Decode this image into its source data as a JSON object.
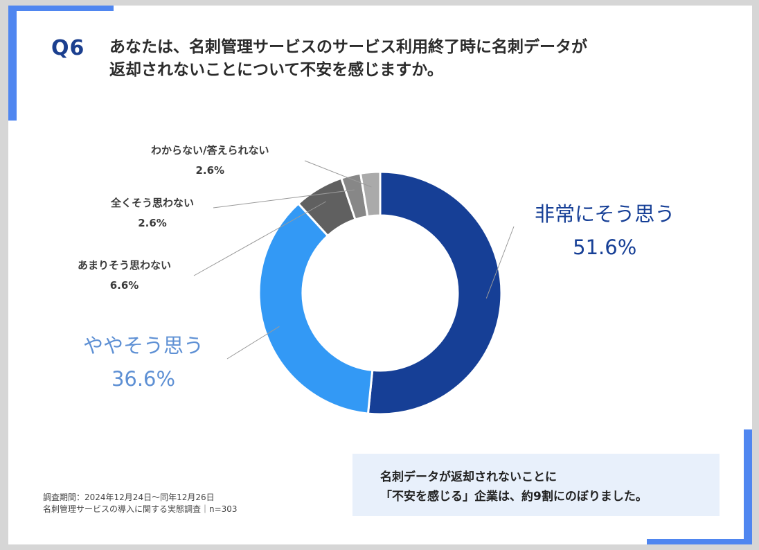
{
  "question": {
    "number": "Q6",
    "line1": "あなたは、名刺管理サービスのサービス利用終了時に名刺データが",
    "line2": "返却されないことについて不安を感じますか。"
  },
  "chart_data": {
    "type": "pie",
    "donut": true,
    "categories": [
      "非常にそう思う",
      "ややそう思う",
      "あまりそう思わない",
      "全くそう思わない",
      "わからない/答えられない"
    ],
    "values": [
      51.6,
      36.6,
      6.6,
      2.6,
      2.6
    ],
    "value_labels": [
      "51.6%",
      "36.6%",
      "6.6%",
      "2.6%",
      "2.6%"
    ],
    "colors": [
      "#163f96",
      "#3399f5",
      "#606060",
      "#878787",
      "#aaaaaa"
    ],
    "label_colors": [
      "#163f96",
      "#5e90d4",
      "#3a3a3a",
      "#3a3a3a",
      "#3a3a3a"
    ]
  },
  "footnote": {
    "line1": "調査期間：2024年12月24日～同年12月26日",
    "line2": "名刺管理サービスの導入に関する実態調査｜n=303"
  },
  "summary": {
    "line1": "名刺データが返却されないことに",
    "line2": "「不安を感じる」企業は、約9割にのぼりました。"
  }
}
